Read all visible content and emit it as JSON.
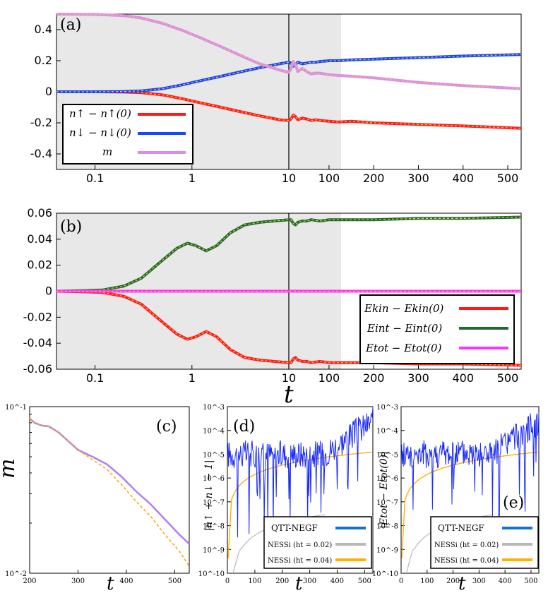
{
  "chart_data": [
    {
      "id": "a",
      "panel_label": "(a)",
      "type": "line",
      "xscale": "log (t<10) then linear (t>=10)",
      "ylim": [
        -0.5,
        0.5
      ],
      "x_ticks": [
        "0.1",
        "1",
        "10",
        "100",
        "200",
        "300",
        "400",
        "500"
      ],
      "y_ticks": [
        "0.4",
        "0.2",
        "0",
        "-0.2",
        "-0.4"
      ],
      "shaded_region": [
        0,
        125
      ],
      "legend_position": "bottom-left",
      "series": [
        {
          "name": "n↑ − n↑(0)",
          "color": "#ff1a1a",
          "t": [
            0.04,
            0.1,
            0.2,
            0.3,
            0.5,
            0.8,
            1.2,
            2,
            3,
            5,
            8,
            10,
            15,
            20,
            25,
            30,
            40,
            50,
            60,
            70,
            80,
            100,
            120,
            150,
            200,
            300,
            400,
            530
          ],
          "values": [
            0,
            0,
            -0.002,
            -0.006,
            -0.02,
            -0.045,
            -0.07,
            -0.1,
            -0.125,
            -0.155,
            -0.18,
            -0.185,
            -0.175,
            -0.15,
            -0.16,
            -0.18,
            -0.17,
            -0.175,
            -0.185,
            -0.18,
            -0.185,
            -0.19,
            -0.195,
            -0.19,
            -0.2,
            -0.21,
            -0.22,
            -0.235
          ]
        },
        {
          "name": "n↓ − n↓(0)",
          "color": "#1446ff",
          "t": [
            0.04,
            0.1,
            0.2,
            0.3,
            0.5,
            0.8,
            1.2,
            2,
            3,
            5,
            8,
            10,
            15,
            20,
            25,
            30,
            40,
            50,
            60,
            70,
            80,
            100,
            120,
            150,
            200,
            300,
            400,
            530
          ],
          "values": [
            0,
            0,
            0.002,
            0.006,
            0.02,
            0.045,
            0.07,
            0.1,
            0.125,
            0.155,
            0.18,
            0.19,
            0.185,
            0.165,
            0.175,
            0.19,
            0.18,
            0.185,
            0.19,
            0.19,
            0.195,
            0.2,
            0.2,
            0.205,
            0.21,
            0.22,
            0.23,
            0.24
          ]
        },
        {
          "name": "m",
          "color": "#d88cf0",
          "t": [
            0.04,
            0.1,
            0.2,
            0.3,
            0.5,
            0.8,
            1.2,
            2,
            3,
            5,
            8,
            10,
            15,
            20,
            25,
            30,
            40,
            50,
            60,
            70,
            80,
            100,
            120,
            150,
            200,
            300,
            400,
            530
          ],
          "values": [
            0.5,
            0.498,
            0.49,
            0.475,
            0.44,
            0.395,
            0.35,
            0.29,
            0.24,
            0.18,
            0.14,
            0.125,
            0.15,
            0.195,
            0.175,
            0.13,
            0.15,
            0.13,
            0.115,
            0.12,
            0.12,
            0.11,
            0.105,
            0.1,
            0.09,
            0.06,
            0.04,
            0.02
          ]
        }
      ]
    },
    {
      "id": "b",
      "panel_label": "(b)",
      "type": "line",
      "xscale": "log (t<10) then linear (t>=10)",
      "ylim": [
        -0.06,
        0.06
      ],
      "x_ticks": [
        "0.1",
        "1",
        "10",
        "100",
        "200",
        "300",
        "400",
        "500"
      ],
      "y_ticks": [
        "0.06",
        "0.04",
        "0.02",
        "0",
        "-0.02",
        "-0.04",
        "-0.06"
      ],
      "shaded_region": [
        0,
        125
      ],
      "legend_position": "bottom-right",
      "x_axis_label": "t",
      "series": [
        {
          "name": "E_kin − E_kin(0)",
          "color": "#ff1a1a",
          "t": [
            0.04,
            0.08,
            0.12,
            0.2,
            0.3,
            0.5,
            0.7,
            0.9,
            1.1,
            1.4,
            1.8,
            2.5,
            3.5,
            5,
            7,
            10,
            15,
            20,
            25,
            30,
            40,
            50,
            60,
            80,
            100,
            120,
            200,
            300,
            400,
            530
          ],
          "values": [
            0,
            -0.0005,
            -0.001,
            -0.004,
            -0.01,
            -0.024,
            -0.033,
            -0.037,
            -0.035,
            -0.031,
            -0.035,
            -0.045,
            -0.051,
            -0.053,
            -0.054,
            -0.055,
            -0.055,
            -0.052,
            -0.051,
            -0.053,
            -0.054,
            -0.054,
            -0.055,
            -0.054,
            -0.055,
            -0.055,
            -0.055,
            -0.056,
            -0.056,
            -0.057
          ]
        },
        {
          "name": "E_int − E_int(0)",
          "color": "#1f6b2e",
          "t": [
            0.04,
            0.08,
            0.12,
            0.2,
            0.3,
            0.5,
            0.7,
            0.9,
            1.1,
            1.4,
            1.8,
            2.5,
            3.5,
            5,
            7,
            10,
            15,
            20,
            25,
            30,
            40,
            50,
            60,
            80,
            100,
            120,
            200,
            300,
            400,
            530
          ],
          "values": [
            0,
            0.0005,
            0.001,
            0.004,
            0.01,
            0.024,
            0.033,
            0.037,
            0.035,
            0.031,
            0.035,
            0.045,
            0.051,
            0.053,
            0.054,
            0.055,
            0.055,
            0.052,
            0.051,
            0.053,
            0.054,
            0.054,
            0.055,
            0.054,
            0.055,
            0.055,
            0.055,
            0.056,
            0.056,
            0.057
          ]
        },
        {
          "name": "E_tot − E_tot(0)",
          "color": "#ff33ff",
          "t": [
            0.04,
            1,
            10,
            530
          ],
          "values": [
            0,
            0,
            0,
            0
          ]
        }
      ]
    },
    {
      "id": "c",
      "panel_label": "(c)",
      "type": "line",
      "xlim": [
        200,
        530
      ],
      "ylim_log": [
        0.01,
        0.1
      ],
      "x_ticks": [
        "200",
        "300",
        "400",
        "500"
      ],
      "y_ticks": [
        "10^-1",
        "10^-2"
      ],
      "ylabel": "m",
      "xlabel": "t",
      "series": [
        {
          "name": "m",
          "color": "#b07ef2",
          "t": [
            200,
            210,
            225,
            240,
            260,
            280,
            300,
            330,
            360,
            390,
            420,
            450,
            480,
            510,
            530
          ],
          "values": [
            0.085,
            0.08,
            0.077,
            0.076,
            0.07,
            0.062,
            0.055,
            0.05,
            0.045,
            0.038,
            0.031,
            0.026,
            0.021,
            0.017,
            0.015
          ]
        },
        {
          "name": "m (dashed)",
          "color": "#f5a800",
          "dashed": true,
          "t": [
            200,
            210,
            225,
            240,
            260,
            280,
            300,
            330,
            360,
            390,
            420,
            450,
            480,
            510,
            530
          ],
          "values": [
            0.085,
            0.08,
            0.077,
            0.076,
            0.07,
            0.062,
            0.055,
            0.048,
            0.042,
            0.034,
            0.027,
            0.022,
            0.017,
            0.0135,
            0.011
          ]
        }
      ]
    },
    {
      "id": "d",
      "panel_label": "(d)",
      "type": "line",
      "xlim": [
        0,
        530
      ],
      "ylim_log": [
        1e-10,
        0.001
      ],
      "x_ticks": [
        "0",
        "100",
        "200",
        "300",
        "400",
        "500"
      ],
      "y_ticks": [
        "10^-3",
        "10^-4",
        "10^-5",
        "10^-6",
        "10^-7",
        "10^-8",
        "10^-9",
        "10^-10"
      ],
      "ylabel": "|n↑ + n↓ − 1|",
      "xlabel": "t",
      "legend": [
        "QTT-NEGF",
        "NESSi (h_t = 0.02)",
        "NESSi (h_t = 0.04)"
      ],
      "series_colors": [
        "#1a2bff",
        "#b9b9b9",
        "#ffb000"
      ]
    },
    {
      "id": "e",
      "panel_label": "(e)",
      "type": "line",
      "xlim": [
        0,
        530
      ],
      "ylim_log": [
        1e-10,
        0.001
      ],
      "x_ticks": [
        "0",
        "100",
        "200",
        "300",
        "400",
        "500"
      ],
      "y_ticks": [
        "10^-3",
        "10^-4",
        "10^-5",
        "10^-6",
        "10^-7",
        "10^-8",
        "10^-9",
        "10^-10"
      ],
      "ylabel": "|E_tot − E_tot(0)|",
      "xlabel": "t",
      "legend": [
        "QTT-NEGF",
        "NESSi (h_t = 0.02)",
        "NESSi (h_t = 0.04)"
      ],
      "series_colors": [
        "#1a2bff",
        "#b9b9b9",
        "#ffb000"
      ]
    }
  ],
  "legend_a": {
    "n_up": "n↑ − n↑(0)",
    "n_dn": "n↓ − n↓(0)",
    "m": "m"
  },
  "legend_b": {
    "ekin": "Ekin − Ekin(0)",
    "eint": "Eint − Eint(0)",
    "etot": "Etot − Etot(0)"
  },
  "legend_de": {
    "qtt": "QTT-NEGF",
    "n02": "NESSi (ht = 0.02)",
    "n04": "NESSi (ht = 0.04)"
  },
  "axis_labels": {
    "t": "t",
    "m": "m",
    "d_y": "|n↑ + n↓ − 1|",
    "e_y": "|Etot − Etot(0)|"
  }
}
